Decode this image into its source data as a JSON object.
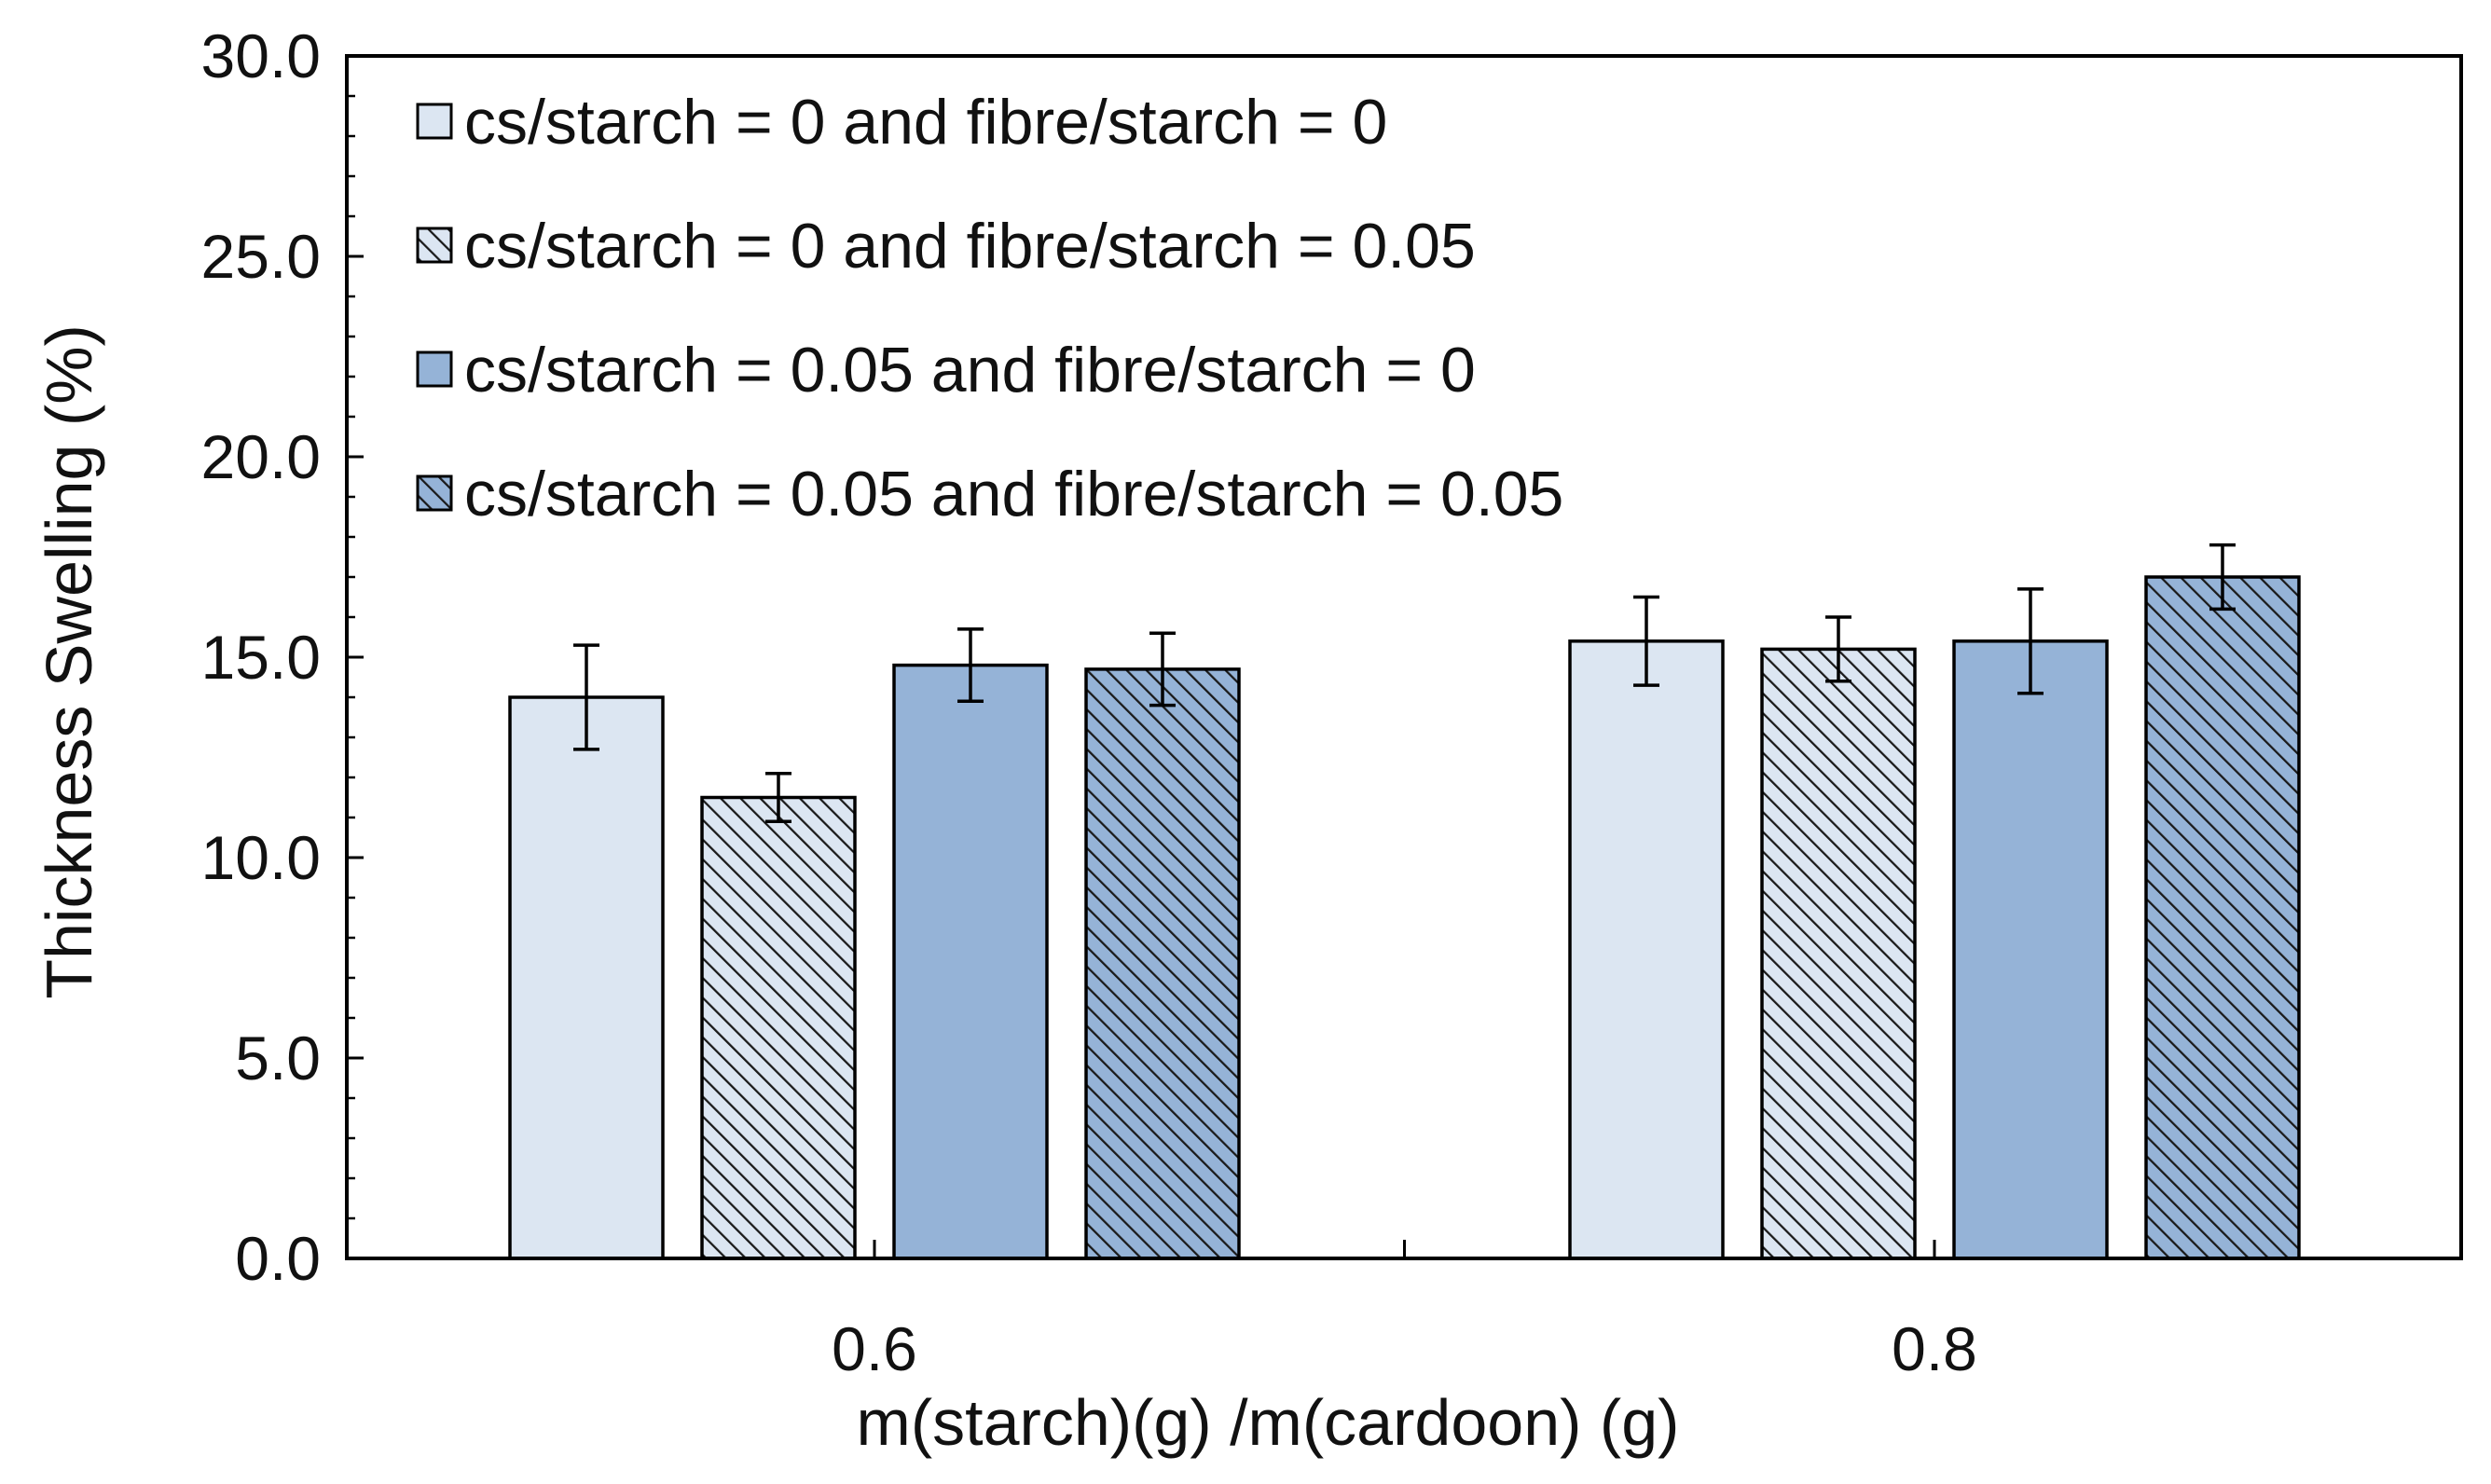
{
  "chart_data": {
    "type": "bar",
    "title": "",
    "xlabel": "m(starch)(g) /m(cardoon) (g)",
    "ylabel": "Thickness Swelling (%)",
    "ylim": [
      0,
      30
    ],
    "yticks": [
      "0.0",
      "5.0",
      "10.0",
      "15.0",
      "20.0",
      "25.0",
      "30.0"
    ],
    "y_minor_step": 1,
    "categories": [
      "0.6",
      "0.8"
    ],
    "legend_position": "top-left",
    "series": [
      {
        "name": "cs/starch = 0 and fibre/starch = 0",
        "values": [
          14.0,
          15.4
        ],
        "errors": [
          1.3,
          1.1
        ],
        "color": "#dce6f2",
        "hatched": false
      },
      {
        "name": "cs/starch = 0 and fibre/starch = 0.05",
        "values": [
          11.5,
          15.2
        ],
        "errors": [
          0.6,
          0.8
        ],
        "color": "#dce6f2",
        "hatched": true
      },
      {
        "name": "cs/starch = 0.05 and fibre/starch = 0",
        "values": [
          14.8,
          15.4
        ],
        "errors": [
          0.9,
          1.3
        ],
        "color": "#95b3d7",
        "hatched": false
      },
      {
        "name": "cs/starch = 0.05 and fibre/starch = 0.05",
        "values": [
          14.7,
          17.0
        ],
        "errors": [
          0.9,
          0.8
        ],
        "color": "#95b3d7",
        "hatched": true
      }
    ],
    "colors": {
      "axis": "#000000",
      "bar_outline": "#000000",
      "hatch_line": "#1a1a1a"
    }
  }
}
